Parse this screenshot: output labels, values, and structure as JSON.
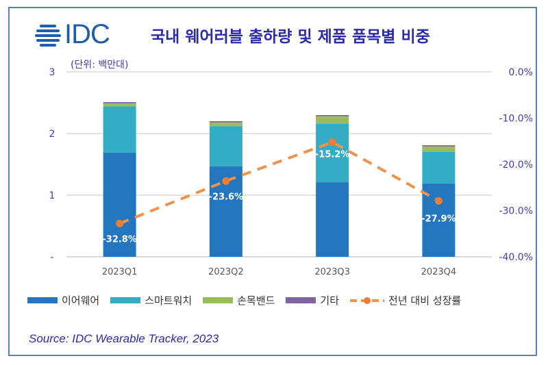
{
  "header": {
    "logo": "IDC",
    "title": "국내 웨어러블 출하량 및 제품 품목별 비중",
    "unit": "(단위: 백만대)"
  },
  "chart_data": {
    "type": "bar",
    "title": "국내 웨어러블 출하량 및 제품 품목별 비중",
    "ylabel": "(단위: 백만대)",
    "categories": [
      "2023Q1",
      "2023Q2",
      "2023Q3",
      "2023Q4"
    ],
    "ylim": [
      0,
      3
    ],
    "y_ticks": [
      "-",
      "1",
      "2",
      "3"
    ],
    "y2lim": [
      -40,
      0
    ],
    "y2_ticks": [
      "-40.0%",
      "-30.0%",
      "-20.0%",
      "-10.0%",
      "0.0%"
    ],
    "grid": true,
    "legend_position": "bottom",
    "series": [
      {
        "name": "이어웨어",
        "type": "bar",
        "color": "#2477bf",
        "values": [
          1.69,
          1.47,
          1.21,
          1.19
        ]
      },
      {
        "name": "스마트워치",
        "type": "bar",
        "color": "#35acc6",
        "values": [
          0.75,
          0.65,
          0.95,
          0.51
        ]
      },
      {
        "name": "손목밴드",
        "type": "bar",
        "color": "#98bd5a",
        "values": [
          0.05,
          0.06,
          0.12,
          0.09
        ]
      },
      {
        "name": "기타",
        "type": "bar",
        "color": "#8064a2",
        "values": [
          0.02,
          0.02,
          0.02,
          0.02
        ]
      },
      {
        "name": "전년 대비 성장률",
        "type": "line",
        "axis": "right",
        "color": "#f0924a",
        "values": [
          -32.8,
          -23.6,
          -15.2,
          -27.9
        ],
        "labels": [
          "-32.8%",
          "-23.6%",
          "-15.2%",
          "-27.9%"
        ]
      }
    ]
  },
  "source": "Source: IDC Wearable Tracker, 2023"
}
